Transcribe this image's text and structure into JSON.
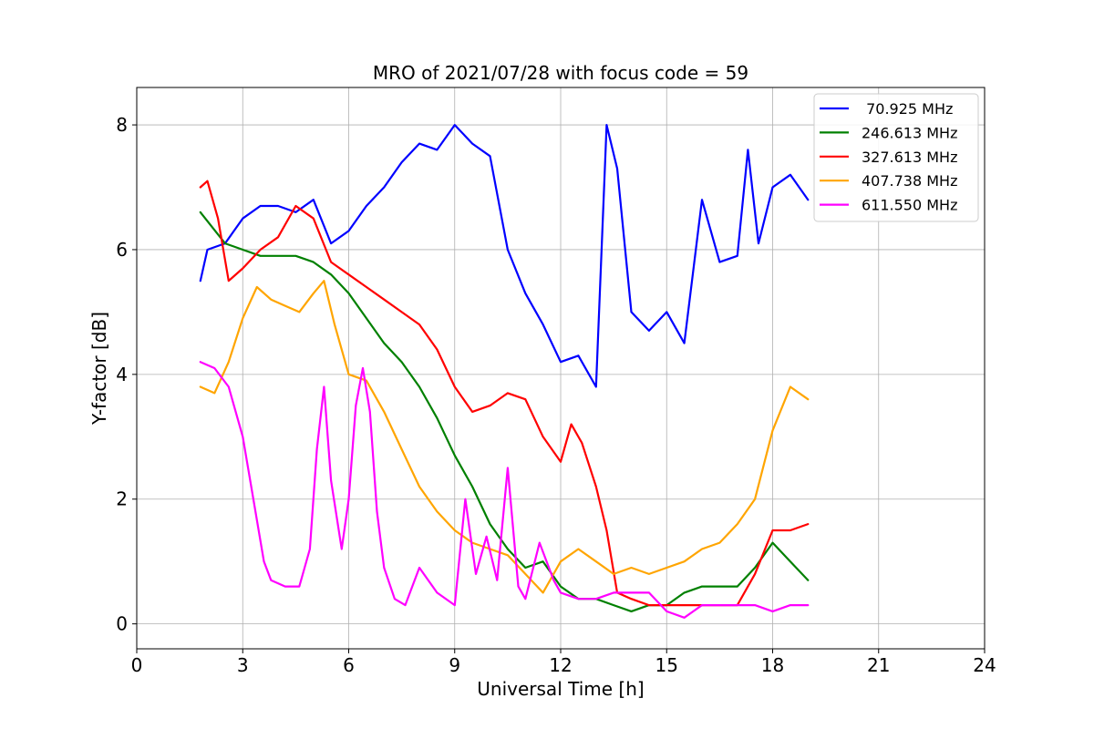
{
  "chart_data": {
    "type": "line",
    "title": "MRO of 2021/07/28 with focus code = 59",
    "xlabel": "Universal Time [h]",
    "ylabel": "Y-factor [dB]",
    "xlim": [
      0,
      24
    ],
    "ylim": [
      -0.4,
      8.6
    ],
    "x_ticks": [
      0,
      3,
      6,
      9,
      12,
      15,
      18,
      21,
      24
    ],
    "x_tick_labels": [
      "0",
      "3",
      "6",
      "9",
      "12",
      "15",
      "18",
      "21",
      "24"
    ],
    "y_ticks": [
      0,
      2,
      4,
      6,
      8
    ],
    "y_tick_labels": [
      "0",
      "2",
      "4",
      "6",
      "8"
    ],
    "grid": true,
    "legend_position": "top-right",
    "series": [
      {
        "name": " 70.925 MHz",
        "color": "#0000ff",
        "x": [
          1.8,
          2.0,
          2.5,
          3.0,
          3.5,
          4.0,
          4.5,
          5.0,
          5.5,
          6.0,
          6.5,
          7.0,
          7.5,
          8.0,
          8.5,
          9.0,
          9.5,
          10.0,
          10.5,
          11.0,
          11.5,
          12.0,
          12.5,
          13.0,
          13.3,
          13.6,
          14.0,
          14.5,
          15.0,
          15.5,
          16.0,
          16.5,
          17.0,
          17.3,
          17.6,
          18.0,
          18.5,
          19.0
        ],
        "y": [
          5.5,
          6.0,
          6.1,
          6.5,
          6.7,
          6.7,
          6.6,
          6.8,
          6.1,
          6.3,
          6.7,
          7.0,
          7.4,
          7.7,
          7.6,
          8.0,
          7.7,
          7.5,
          6.0,
          5.3,
          4.8,
          4.2,
          4.3,
          3.8,
          8.0,
          7.3,
          5.0,
          4.7,
          5.0,
          4.5,
          6.8,
          5.8,
          5.9,
          7.6,
          6.1,
          7.0,
          7.2,
          6.8
        ]
      },
      {
        "name": "246.613 MHz",
        "color": "#008000",
        "x": [
          1.8,
          2.5,
          3.0,
          3.5,
          4.0,
          4.5,
          5.0,
          5.5,
          6.0,
          6.5,
          7.0,
          7.5,
          8.0,
          8.5,
          9.0,
          9.5,
          10.0,
          10.5,
          11.0,
          11.5,
          12.0,
          12.5,
          13.0,
          13.5,
          14.0,
          14.5,
          15.0,
          15.5,
          16.0,
          16.5,
          17.0,
          17.5,
          18.0,
          18.5,
          19.0
        ],
        "y": [
          6.6,
          6.1,
          6.0,
          5.9,
          5.9,
          5.9,
          5.8,
          5.6,
          5.3,
          4.9,
          4.5,
          4.2,
          3.8,
          3.3,
          2.7,
          2.2,
          1.6,
          1.2,
          0.9,
          1.0,
          0.6,
          0.4,
          0.4,
          0.3,
          0.2,
          0.3,
          0.3,
          0.5,
          0.6,
          0.6,
          0.6,
          0.9,
          1.3,
          1.0,
          0.7
        ]
      },
      {
        "name": "327.613 MHz",
        "color": "#ff0000",
        "x": [
          1.8,
          2.0,
          2.3,
          2.6,
          3.0,
          3.5,
          4.0,
          4.5,
          5.0,
          5.5,
          6.0,
          6.5,
          7.0,
          7.5,
          8.0,
          8.5,
          9.0,
          9.5,
          10.0,
          10.5,
          11.0,
          11.5,
          12.0,
          12.3,
          12.6,
          13.0,
          13.3,
          13.6,
          14.0,
          14.5,
          15.0,
          15.5,
          16.0,
          16.5,
          17.0,
          17.5,
          18.0,
          18.5,
          19.0
        ],
        "y": [
          7.0,
          7.1,
          6.5,
          5.5,
          5.7,
          6.0,
          6.2,
          6.7,
          6.5,
          5.8,
          5.6,
          5.4,
          5.2,
          5.0,
          4.8,
          4.4,
          3.8,
          3.4,
          3.5,
          3.7,
          3.6,
          3.0,
          2.6,
          3.2,
          2.9,
          2.2,
          1.5,
          0.5,
          0.4,
          0.3,
          0.3,
          0.3,
          0.3,
          0.3,
          0.3,
          0.8,
          1.5,
          1.5,
          1.6
        ]
      },
      {
        "name": "407.738 MHz",
        "color": "#ffa500",
        "x": [
          1.8,
          2.2,
          2.6,
          3.0,
          3.4,
          3.8,
          4.2,
          4.6,
          5.0,
          5.3,
          5.6,
          6.0,
          6.5,
          7.0,
          7.5,
          8.0,
          8.5,
          9.0,
          9.5,
          10.0,
          10.5,
          11.0,
          11.5,
          12.0,
          12.5,
          13.0,
          13.5,
          14.0,
          14.5,
          15.0,
          15.5,
          16.0,
          16.5,
          17.0,
          17.5,
          18.0,
          18.5,
          19.0
        ],
        "y": [
          3.8,
          3.7,
          4.2,
          4.9,
          5.4,
          5.2,
          5.1,
          5.0,
          5.3,
          5.5,
          4.8,
          4.0,
          3.9,
          3.4,
          2.8,
          2.2,
          1.8,
          1.5,
          1.3,
          1.2,
          1.1,
          0.8,
          0.5,
          1.0,
          1.2,
          1.0,
          0.8,
          0.9,
          0.8,
          0.9,
          1.0,
          1.2,
          1.3,
          1.6,
          2.0,
          3.1,
          3.8,
          3.6
        ]
      },
      {
        "name": "611.550 MHz",
        "color": "#ff00ff",
        "x": [
          1.8,
          2.2,
          2.6,
          3.0,
          3.3,
          3.6,
          3.8,
          4.2,
          4.6,
          4.9,
          5.1,
          5.3,
          5.5,
          5.8,
          6.0,
          6.2,
          6.4,
          6.6,
          6.8,
          7.0,
          7.3,
          7.6,
          8.0,
          8.5,
          9.0,
          9.3,
          9.6,
          9.9,
          10.2,
          10.5,
          10.8,
          11.0,
          11.4,
          11.8,
          12.0,
          12.5,
          13.0,
          13.5,
          14.0,
          14.5,
          15.0,
          15.5,
          16.0,
          16.5,
          17.0,
          17.5,
          18.0,
          18.5,
          19.0
        ],
        "y": [
          4.2,
          4.1,
          3.8,
          3.0,
          2.0,
          1.0,
          0.7,
          0.6,
          0.6,
          1.2,
          2.8,
          3.8,
          2.3,
          1.2,
          2.0,
          3.5,
          4.1,
          3.4,
          1.8,
          0.9,
          0.4,
          0.3,
          0.9,
          0.5,
          0.3,
          2.0,
          0.8,
          1.4,
          0.7,
          2.5,
          0.6,
          0.4,
          1.3,
          0.7,
          0.5,
          0.4,
          0.4,
          0.5,
          0.5,
          0.5,
          0.2,
          0.1,
          0.3,
          0.3,
          0.3,
          0.3,
          0.2,
          0.3,
          0.3
        ]
      }
    ]
  }
}
